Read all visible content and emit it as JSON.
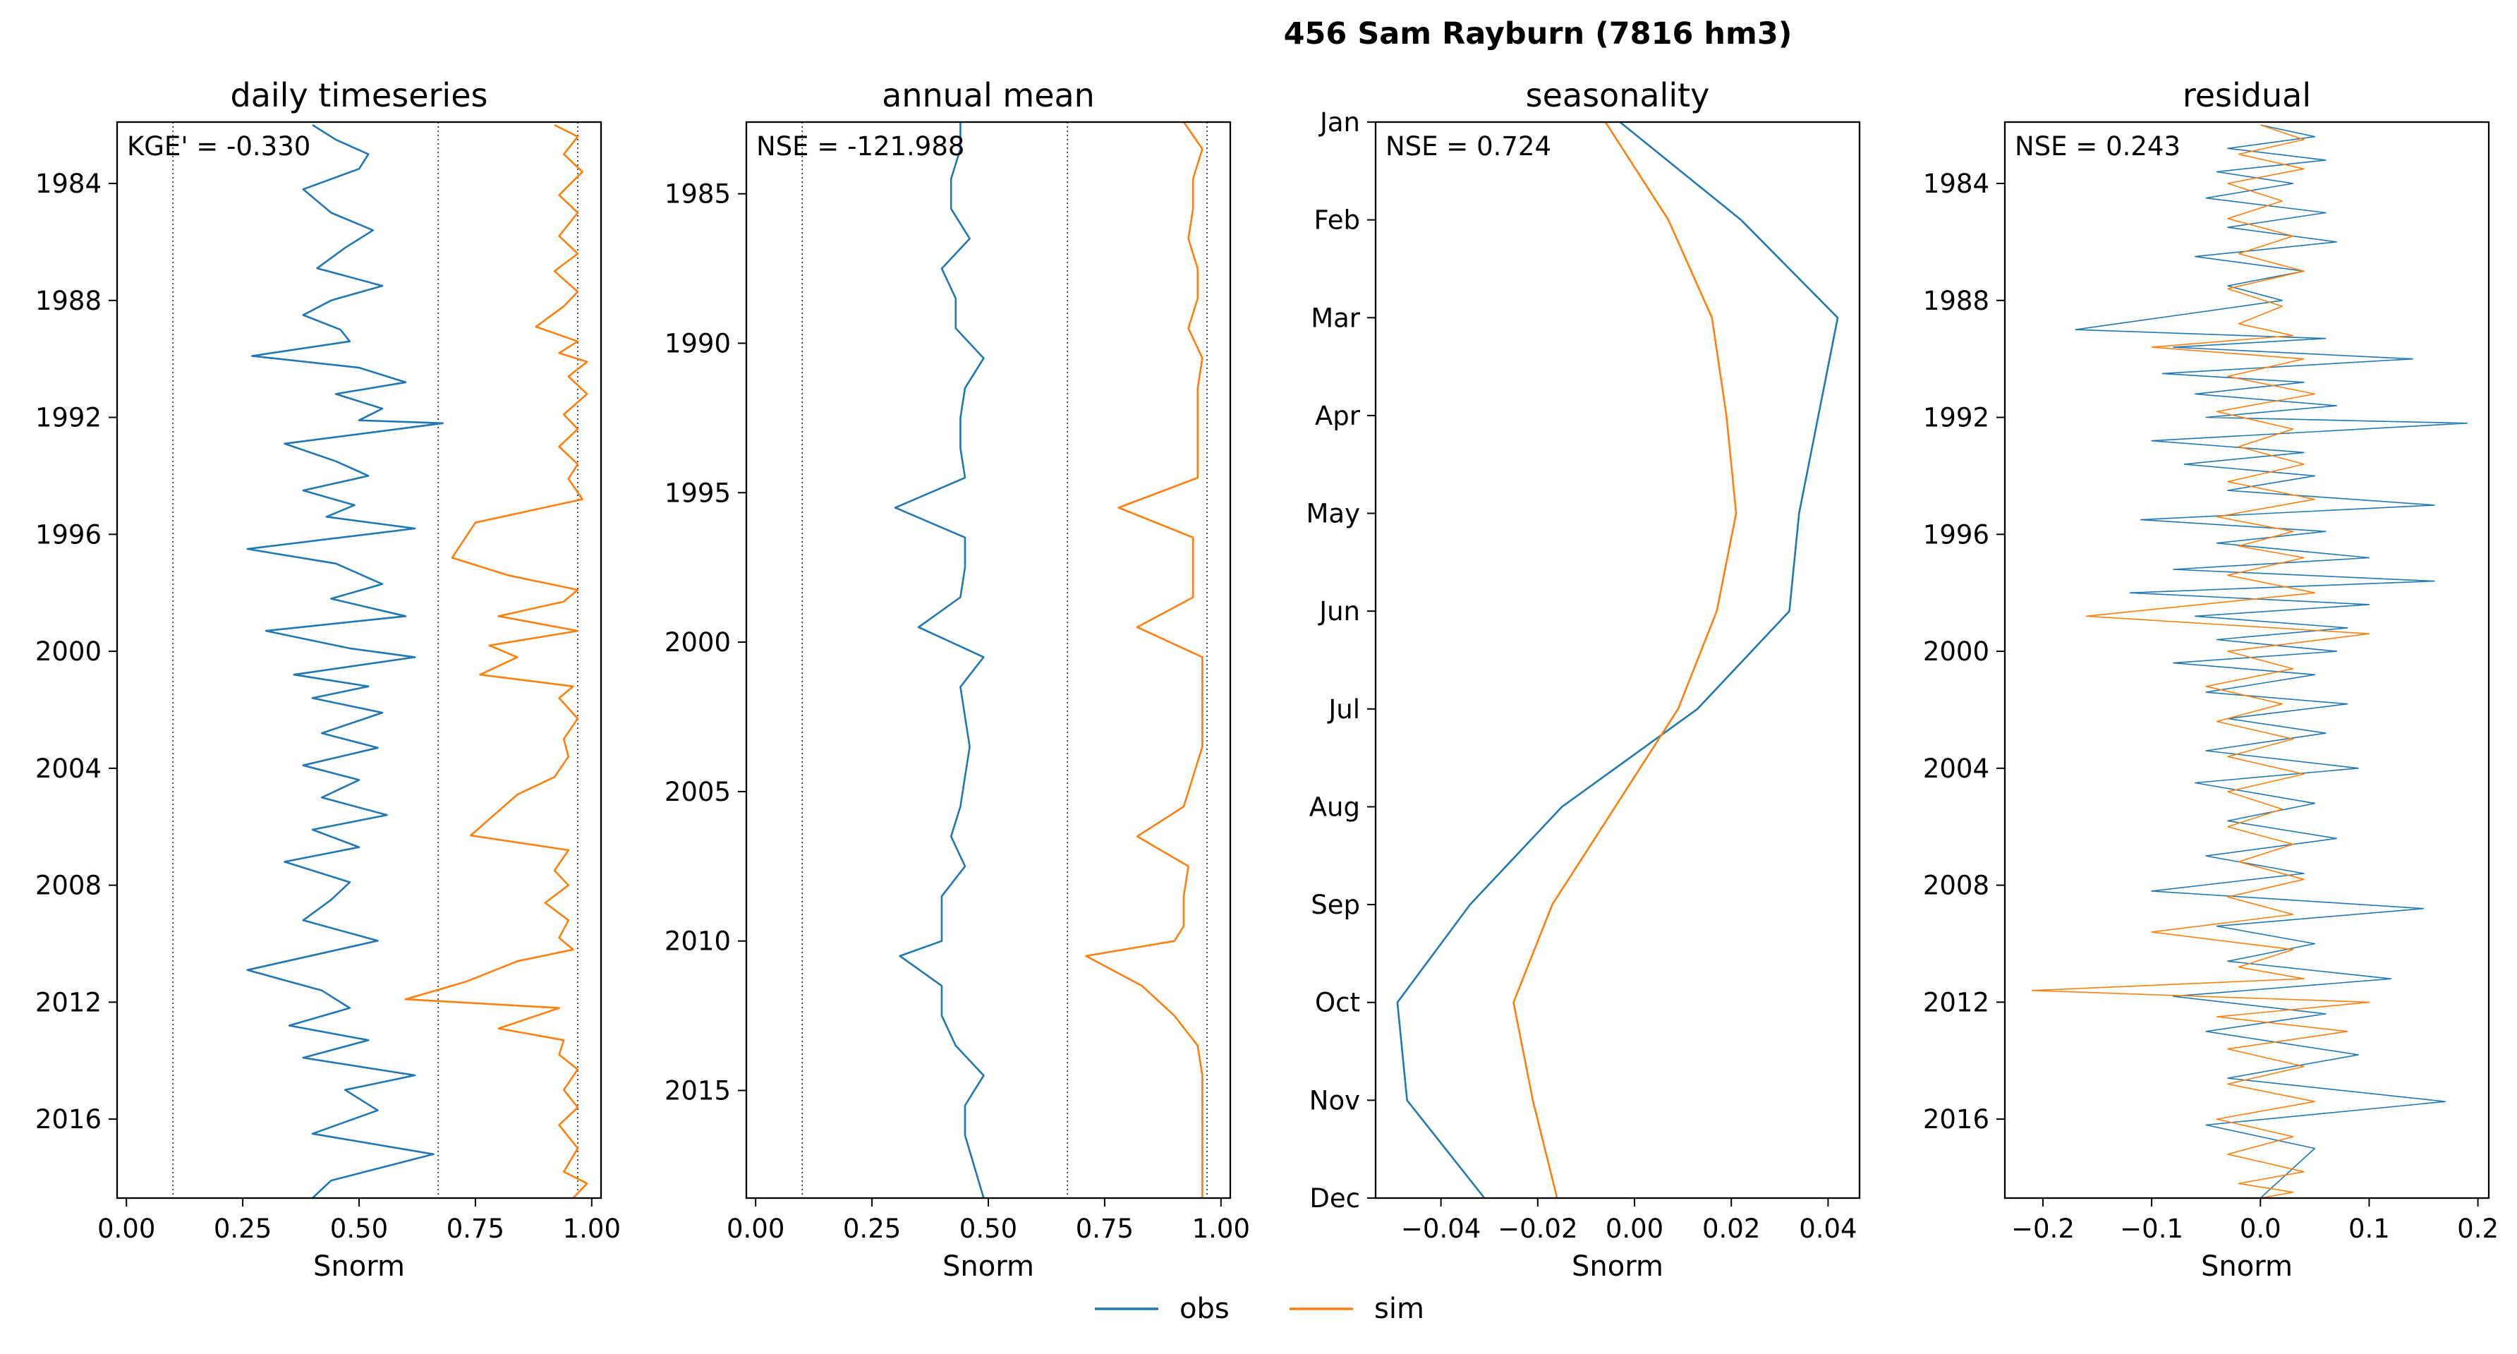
{
  "figure": {
    "suptitle": "456  Sam Rayburn (7816 hm3)",
    "legend": {
      "obs_label": "obs",
      "sim_label": "sim",
      "placement": "bottom-center"
    },
    "colors": {
      "obs": "#1f77b4",
      "sim": "#ff7f0e"
    }
  },
  "chart_data": [
    {
      "type": "line",
      "title": "daily timeseries",
      "xlabel": "Snorm",
      "ylabel": "",
      "metric": "KGE' = -0.330",
      "xlim": [
        -0.02,
        1.02
      ],
      "ylim": [
        2018.7,
        1981.9
      ],
      "xticks": [
        "0.00",
        "0.25",
        "0.50",
        "0.75",
        "1.00"
      ],
      "yticks": [
        "1984",
        "1988",
        "1992",
        "1996",
        "2000",
        "2004",
        "2008",
        "2012",
        "2016"
      ],
      "reference_lines": [
        0.1,
        0.67,
        0.97
      ],
      "series": [
        {
          "name": "obs",
          "x": [
            0.4,
            0.45,
            0.52,
            0.5,
            0.38,
            0.44,
            0.53,
            0.47,
            0.41,
            0.55,
            0.44,
            0.38,
            0.46,
            0.48,
            0.27,
            0.5,
            0.6,
            0.45,
            0.55,
            0.5,
            0.68,
            0.34,
            0.45,
            0.52,
            0.38,
            0.49,
            0.43,
            0.62,
            0.26,
            0.45,
            0.55,
            0.44,
            0.6,
            0.3,
            0.48,
            0.62,
            0.36,
            0.52,
            0.4,
            0.55,
            0.42,
            0.54,
            0.38,
            0.5,
            0.42,
            0.56,
            0.4,
            0.5,
            0.34,
            0.48,
            0.44,
            0.38,
            0.54,
            0.26,
            0.42,
            0.48,
            0.35,
            0.52,
            0.38,
            0.62,
            0.47,
            0.54,
            0.4,
            0.66,
            0.44,
            0.4
          ],
          "y": [
            1982.0,
            1982.5,
            1983.0,
            1983.5,
            1984.2,
            1985.0,
            1985.6,
            1986.2,
            1986.9,
            1987.5,
            1988.0,
            1988.5,
            1989.0,
            1989.4,
            1989.9,
            1990.3,
            1990.8,
            1991.2,
            1991.7,
            1992.1,
            1992.2,
            1992.9,
            1993.5,
            1994.0,
            1994.5,
            1995.0,
            1995.4,
            1995.8,
            1996.5,
            1997.0,
            1997.7,
            1998.2,
            1998.8,
            1999.3,
            1999.9,
            2000.2,
            2000.8,
            2001.2,
            2001.6,
            2002.1,
            2002.8,
            2003.3,
            2003.9,
            2004.4,
            2005.0,
            2005.6,
            2006.1,
            2006.7,
            2007.2,
            2007.9,
            2008.5,
            2009.2,
            2009.9,
            2010.9,
            2011.6,
            2012.2,
            2012.8,
            2013.3,
            2013.9,
            2014.5,
            2015.0,
            2015.7,
            2016.5,
            2017.2,
            2018.1,
            2018.7
          ]
        },
        {
          "name": "sim",
          "x": [
            0.92,
            0.97,
            0.94,
            0.98,
            0.93,
            0.97,
            0.93,
            0.97,
            0.92,
            0.97,
            0.94,
            0.88,
            0.97,
            0.93,
            0.99,
            0.95,
            0.99,
            0.94,
            0.97,
            0.93,
            0.97,
            0.95,
            0.98,
            0.75,
            0.7,
            0.82,
            0.97,
            0.94,
            0.8,
            0.97,
            0.78,
            0.84,
            0.76,
            0.96,
            0.93,
            0.97,
            0.94,
            0.95,
            0.92,
            0.84,
            0.74,
            0.95,
            0.92,
            0.95,
            0.9,
            0.95,
            0.93,
            0.96,
            0.84,
            0.73,
            0.6,
            0.93,
            0.8,
            0.94,
            0.93,
            0.97,
            0.94,
            0.97,
            0.93,
            0.97,
            0.94,
            0.99,
            0.96
          ],
          "y": [
            1982.0,
            1982.4,
            1983.0,
            1983.6,
            1984.4,
            1985.0,
            1985.8,
            1986.4,
            1987.0,
            1987.7,
            1988.2,
            1988.9,
            1989.4,
            1989.8,
            1990.1,
            1990.6,
            1991.2,
            1991.9,
            1992.4,
            1993.0,
            1993.6,
            1994.1,
            1994.8,
            1995.6,
            1996.8,
            1997.4,
            1997.9,
            1998.3,
            1998.8,
            1999.3,
            1999.8,
            2000.2,
            2000.8,
            2001.2,
            2001.6,
            2002.3,
            2003.0,
            2003.6,
            2004.3,
            2004.9,
            2006.3,
            2006.8,
            2007.5,
            2008.0,
            2008.6,
            2009.2,
            2009.8,
            2010.2,
            2010.6,
            2011.3,
            2011.9,
            2012.2,
            2012.9,
            2013.3,
            2013.8,
            2014.3,
            2015.0,
            2015.6,
            2016.2,
            2017.0,
            2017.8,
            2018.2,
            2018.7
          ]
        }
      ]
    },
    {
      "type": "line",
      "title": "annual mean",
      "xlabel": "Snorm",
      "ylabel": "",
      "metric": "NSE = -121.988",
      "xlim": [
        -0.02,
        1.02
      ],
      "ylim": [
        2018.6,
        1982.6
      ],
      "xticks": [
        "0.00",
        "0.25",
        "0.50",
        "0.75",
        "1.00"
      ],
      "yticks": [
        "1985",
        "1990",
        "1995",
        "2000",
        "2005",
        "2010",
        "2015"
      ],
      "reference_lines": [
        0.1,
        0.67,
        0.97
      ],
      "series": [
        {
          "name": "obs",
          "x": [
            0.44,
            0.44,
            0.42,
            0.42,
            0.46,
            0.4,
            0.43,
            0.43,
            0.49,
            0.45,
            0.44,
            0.44,
            0.45,
            0.3,
            0.45,
            0.45,
            0.44,
            0.35,
            0.49,
            0.44,
            0.45,
            0.46,
            0.45,
            0.44,
            0.42,
            0.45,
            0.4,
            0.4,
            0.4,
            0.31,
            0.4,
            0.4,
            0.43,
            0.49,
            0.45,
            0.45,
            0.49
          ],
          "y": [
            1982.6,
            1983.5,
            1984.5,
            1985.5,
            1986.5,
            1987.5,
            1988.5,
            1989.5,
            1990.5,
            1991.5,
            1992.5,
            1993.5,
            1994.5,
            1995.5,
            1996.5,
            1997.5,
            1998.5,
            1999.5,
            2000.5,
            2001.5,
            2002.5,
            2003.5,
            2004.5,
            2005.5,
            2006.5,
            2007.5,
            2008.5,
            2009.5,
            2010.0,
            2010.5,
            2011.5,
            2012.5,
            2013.5,
            2014.5,
            2015.5,
            2016.5,
            2018.6
          ]
        },
        {
          "name": "sim",
          "x": [
            0.92,
            0.96,
            0.94,
            0.94,
            0.93,
            0.95,
            0.95,
            0.93,
            0.96,
            0.95,
            0.95,
            0.95,
            0.95,
            0.78,
            0.94,
            0.94,
            0.94,
            0.82,
            0.96,
            0.96,
            0.96,
            0.96,
            0.94,
            0.92,
            0.82,
            0.93,
            0.92,
            0.92,
            0.9,
            0.71,
            0.83,
            0.9,
            0.95,
            0.96,
            0.96,
            0.96,
            0.96
          ],
          "y": [
            1982.6,
            1983.5,
            1984.5,
            1985.5,
            1986.5,
            1987.5,
            1988.5,
            1989.5,
            1990.5,
            1991.5,
            1992.5,
            1993.5,
            1994.5,
            1995.5,
            1996.5,
            1997.5,
            1998.5,
            1999.5,
            2000.5,
            2001.5,
            2002.5,
            2003.5,
            2004.5,
            2005.5,
            2006.5,
            2007.5,
            2008.5,
            2009.5,
            2010.0,
            2010.5,
            2011.5,
            2012.5,
            2013.5,
            2014.5,
            2015.5,
            2016.5,
            2018.6
          ]
        }
      ]
    },
    {
      "type": "line",
      "title": "seasonality",
      "xlabel": "Snorm",
      "ylabel": "",
      "metric": "NSE = 0.724",
      "xlim": [
        -0.0535,
        0.0465
      ],
      "ylim": [
        11,
        0
      ],
      "xticks": [
        "−0.04",
        "−0.02",
        "0.00",
        "0.02",
        "0.04"
      ],
      "yticks": [
        "Jan",
        "Feb",
        "Mar",
        "Apr",
        "May",
        "Jun",
        "Jul",
        "Aug",
        "Sep",
        "Oct",
        "Nov",
        "Dec"
      ],
      "series": [
        {
          "name": "obs",
          "x": [
            -0.003,
            0.022,
            0.042,
            0.038,
            0.034,
            0.032,
            0.013,
            -0.015,
            -0.034,
            -0.049,
            -0.047,
            -0.031
          ],
          "y": [
            0,
            1,
            2,
            3,
            4,
            5,
            6,
            7,
            8,
            9,
            10,
            11
          ]
        },
        {
          "name": "sim",
          "x": [
            -0.006,
            0.007,
            0.016,
            0.019,
            0.021,
            0.017,
            0.009,
            -0.004,
            -0.017,
            -0.025,
            -0.021,
            -0.016
          ],
          "y": [
            0,
            1,
            2,
            3,
            4,
            5,
            6,
            7,
            8,
            9,
            10,
            11
          ]
        }
      ]
    },
    {
      "type": "line",
      "title": "residual",
      "xlabel": "Snorm",
      "ylabel": "",
      "metric": "NSE = 0.243",
      "xlim": [
        -0.235,
        0.21
      ],
      "ylim": [
        2018.7,
        1981.9
      ],
      "xticks": [
        "−0.2",
        "−0.1",
        "0.0",
        "0.1",
        "0.2"
      ],
      "yticks": [
        "1984",
        "1988",
        "1992",
        "1996",
        "2000",
        "2004",
        "2008",
        "2012",
        "2016"
      ],
      "series": [
        {
          "name": "obs",
          "x": [
            0.0,
            0.05,
            -0.03,
            0.06,
            -0.04,
            0.03,
            -0.05,
            0.06,
            -0.03,
            0.07,
            -0.06,
            0.04,
            -0.03,
            0.02,
            -0.17,
            0.06,
            -0.08,
            0.14,
            -0.09,
            0.04,
            -0.06,
            0.07,
            -0.05,
            0.19,
            -0.1,
            0.04,
            -0.07,
            0.05,
            -0.03,
            0.16,
            -0.11,
            0.06,
            -0.04,
            0.1,
            -0.08,
            0.16,
            -0.12,
            0.1,
            -0.06,
            0.08,
            -0.04,
            0.07,
            -0.08,
            0.05,
            -0.05,
            0.08,
            -0.03,
            0.06,
            -0.05,
            0.09,
            -0.06,
            0.05,
            -0.03,
            0.07,
            -0.05,
            0.04,
            -0.1,
            0.15,
            -0.04,
            0.05,
            -0.03,
            0.12,
            -0.08,
            0.06,
            -0.05,
            0.09,
            -0.03,
            0.17,
            -0.05,
            0.05,
            0.0
          ],
          "y": [
            1982.0,
            1982.4,
            1982.8,
            1983.2,
            1983.6,
            1984.0,
            1984.5,
            1985.0,
            1985.5,
            1986.0,
            1986.5,
            1987.0,
            1987.5,
            1988.0,
            1989.0,
            1989.3,
            1989.6,
            1990.0,
            1990.5,
            1990.8,
            1991.2,
            1991.6,
            1992.0,
            1992.2,
            1992.8,
            1993.2,
            1993.6,
            1994.0,
            1994.5,
            1995.0,
            1995.5,
            1995.9,
            1996.3,
            1996.8,
            1997.2,
            1997.6,
            1998.0,
            1998.4,
            1998.8,
            1999.2,
            1999.6,
            2000.0,
            2000.4,
            2000.8,
            2001.4,
            2001.8,
            2002.3,
            2002.8,
            2003.4,
            2004.0,
            2004.5,
            2005.2,
            2005.8,
            2006.4,
            2007.0,
            2007.6,
            2008.2,
            2008.8,
            2009.4,
            2010.0,
            2010.6,
            2011.2,
            2011.8,
            2012.4,
            2013.0,
            2013.8,
            2014.6,
            2015.4,
            2016.2,
            2017.0,
            2018.7
          ]
        },
        {
          "name": "sim",
          "x": [
            0.0,
            0.04,
            -0.02,
            0.04,
            -0.03,
            0.02,
            -0.03,
            0.03,
            -0.02,
            0.04,
            -0.03,
            0.02,
            -0.02,
            0.03,
            -0.1,
            0.04,
            -0.03,
            0.05,
            -0.04,
            0.03,
            -0.02,
            0.04,
            -0.03,
            0.05,
            -0.04,
            0.03,
            -0.02,
            0.04,
            -0.03,
            0.05,
            -0.16,
            0.1,
            -0.03,
            0.03,
            -0.05,
            0.02,
            -0.04,
            0.03,
            -0.03,
            0.04,
            -0.03,
            0.02,
            -0.03,
            0.03,
            -0.02,
            0.04,
            -0.03,
            0.03,
            -0.1,
            0.03,
            -0.02,
            0.04,
            -0.21,
            0.1,
            -0.04,
            0.08,
            -0.03,
            0.04,
            -0.03,
            0.05,
            -0.04,
            0.03,
            -0.03,
            0.04,
            -0.02,
            0.03,
            0.0
          ],
          "y": [
            1982.0,
            1982.5,
            1983.0,
            1983.5,
            1984.0,
            1984.6,
            1985.2,
            1985.8,
            1986.4,
            1987.0,
            1987.6,
            1988.2,
            1988.8,
            1989.2,
            1989.6,
            1990.0,
            1990.6,
            1991.2,
            1991.8,
            1992.4,
            1993.0,
            1993.6,
            1994.2,
            1994.8,
            1995.4,
            1995.9,
            1996.4,
            1996.8,
            1997.4,
            1998.0,
            1998.8,
            1999.4,
            2000.0,
            2000.6,
            2001.2,
            2001.8,
            2002.4,
            2003.0,
            2003.6,
            2004.2,
            2004.8,
            2005.4,
            2006.0,
            2006.6,
            2007.2,
            2007.8,
            2008.4,
            2009.0,
            2009.6,
            2010.2,
            2010.8,
            2011.2,
            2011.6,
            2012.0,
            2012.5,
            2013.0,
            2013.6,
            2014.2,
            2014.8,
            2015.4,
            2016.0,
            2016.6,
            2017.2,
            2017.8,
            2018.2,
            2018.5,
            2018.7
          ]
        }
      ]
    }
  ]
}
